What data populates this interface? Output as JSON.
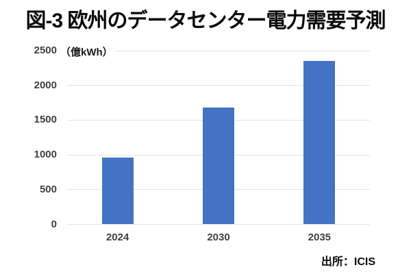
{
  "page": {
    "background": "#ffffff"
  },
  "chart_data": {
    "type": "bar",
    "title": "図-3 欧州のデータセンター電力需要予測",
    "unit_label": "（億kWh）",
    "categories": [
      "2024",
      "2030",
      "2035"
    ],
    "values": [
      960,
      1680,
      2350
    ],
    "xlabel": "",
    "ylabel": "",
    "ylim": [
      0,
      2500
    ],
    "yticks": [
      0,
      500,
      1000,
      1500,
      2000,
      2500
    ],
    "grid": true,
    "legend": "none",
    "bar_color": "#4472C4",
    "gridline_color": "#E2E2E2",
    "tick_label_color": "#3F3F3F",
    "source": "出所：ICIS"
  }
}
